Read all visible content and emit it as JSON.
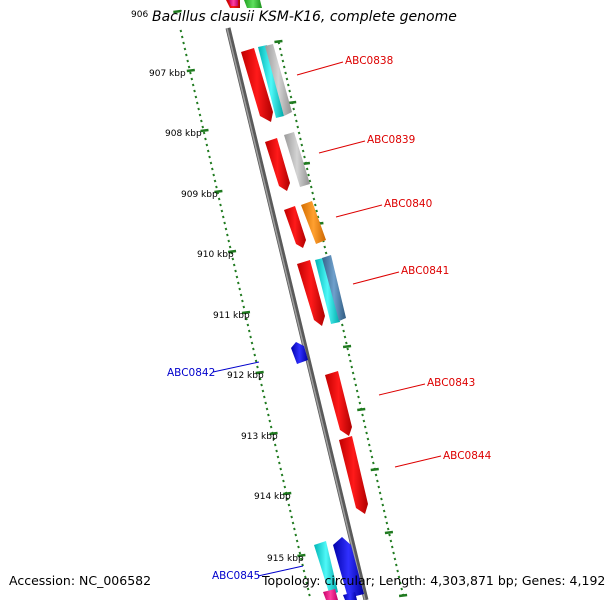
{
  "title": "Bacillus clausii KSM-K16, complete genome",
  "footer": {
    "accession": "Accession: NC_006582",
    "summary": "Topology: circular; Length: 4,303,871 bp; Genes: 4,192"
  },
  "scale_labels": [
    "906",
    "907 kbp",
    "908 kbp",
    "909 kbp",
    "910 kbp",
    "911 kbp",
    "912 kbp",
    "913 kbp",
    "914 kbp",
    "915 kbp"
  ],
  "gene_labels": [
    {
      "text": "ABC0838",
      "color": "#dd0000"
    },
    {
      "text": "ABC0839",
      "color": "#dd0000"
    },
    {
      "text": "ABC0840",
      "color": "#dd0000"
    },
    {
      "text": "ABC0841",
      "color": "#dd0000"
    },
    {
      "text": "ABC0842",
      "color": "#0000cc"
    },
    {
      "text": "ABC0843",
      "color": "#dd0000"
    },
    {
      "text": "ABC0844",
      "color": "#dd0000"
    },
    {
      "text": "ABC0845",
      "color": "#0000cc"
    }
  ],
  "colors": {
    "forward_cds": "#ff0000",
    "reverse_cds": "#0000ee",
    "cyan_track": "#00e5e5",
    "gray_track": "#b4b4b4",
    "orange_track": "#ff8c00",
    "steelblue_track": "#4682b4",
    "backbone": "#808080",
    "ticks": "#1f7a1f"
  }
}
